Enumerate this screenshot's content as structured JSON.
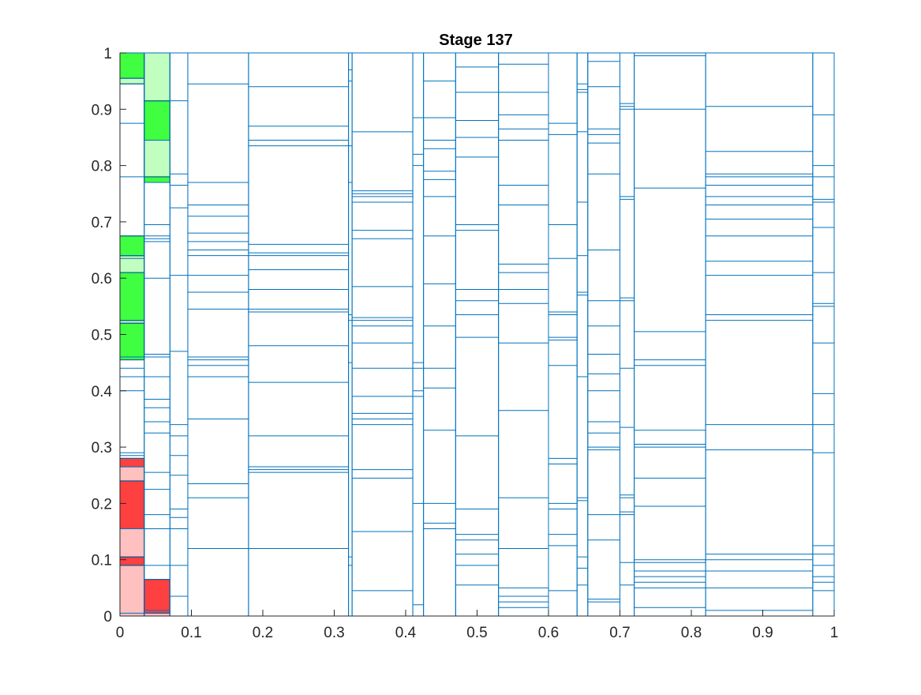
{
  "chart_data": {
    "type": "heatmap",
    "title": "Stage 137",
    "xlabel": "",
    "ylabel": "",
    "xlim": [
      0,
      1
    ],
    "ylim": [
      0,
      1
    ],
    "xticks": [
      "0",
      "0.1",
      "0.2",
      "0.3",
      "0.4",
      "0.5",
      "0.6",
      "0.7",
      "0.8",
      "0.9",
      "1"
    ],
    "yticks": [
      "0",
      "0.1",
      "0.2",
      "0.3",
      "0.4",
      "0.5",
      "0.6",
      "0.7",
      "0.8",
      "0.9",
      "1"
    ],
    "grid": false,
    "colors": {
      "outline": "#0072BD",
      "green_dark": "#40FF40",
      "green_light": "#C0FFC0",
      "red_dark": "#FF4040",
      "red_light": "#FFC0C0",
      "cell_border": "#000000",
      "axis": "#262626"
    },
    "columns": [
      {
        "x0": 0.0,
        "x1": 0.034,
        "splits": [
          0.005,
          0.09,
          0.105,
          0.155,
          0.24,
          0.265,
          0.28,
          0.285,
          0.29,
          0.4,
          0.425,
          0.44,
          0.455,
          0.46,
          0.52,
          0.525,
          0.61,
          0.635,
          0.64,
          0.675,
          0.78,
          0.875,
          0.945,
          0.955
        ],
        "fills": [
          {
            "y0": 0.0,
            "y1": 0.09,
            "color": "red_light"
          },
          {
            "y0": 0.09,
            "y1": 0.105,
            "color": "red_dark"
          },
          {
            "y0": 0.105,
            "y1": 0.155,
            "color": "red_light"
          },
          {
            "y0": 0.155,
            "y1": 0.24,
            "color": "red_dark"
          },
          {
            "y0": 0.24,
            "y1": 0.265,
            "color": "red_light"
          },
          {
            "y0": 0.265,
            "y1": 0.28,
            "color": "red_dark"
          },
          {
            "y0": 0.455,
            "y1": 0.52,
            "color": "green_dark"
          },
          {
            "y0": 0.52,
            "y1": 0.525,
            "color": "green_light"
          },
          {
            "y0": 0.525,
            "y1": 0.61,
            "color": "green_dark"
          },
          {
            "y0": 0.61,
            "y1": 0.64,
            "color": "green_light"
          },
          {
            "y0": 0.64,
            "y1": 0.675,
            "color": "green_dark"
          },
          {
            "y0": 0.945,
            "y1": 0.955,
            "color": "green_light"
          },
          {
            "y0": 0.955,
            "y1": 1.0,
            "color": "green_dark"
          }
        ]
      },
      {
        "x0": 0.034,
        "x1": 0.07,
        "splits": [
          0.005,
          0.01,
          0.065,
          0.09,
          0.155,
          0.18,
          0.225,
          0.255,
          0.325,
          0.345,
          0.37,
          0.385,
          0.425,
          0.46,
          0.465,
          0.6,
          0.665,
          0.67,
          0.675,
          0.695,
          0.77,
          0.78,
          0.845,
          0.915
        ],
        "fills": [
          {
            "y0": 0.0,
            "y1": 0.005,
            "color": "red_light"
          },
          {
            "y0": 0.005,
            "y1": 0.065,
            "color": "red_dark"
          },
          {
            "y0": 0.77,
            "y1": 0.78,
            "color": "green_dark"
          },
          {
            "y0": 0.78,
            "y1": 0.845,
            "color": "green_light"
          },
          {
            "y0": 0.845,
            "y1": 0.915,
            "color": "green_dark"
          },
          {
            "y0": 0.915,
            "y1": 1.0,
            "color": "green_light"
          }
        ]
      },
      {
        "x0": 0.07,
        "x1": 0.095,
        "splits": [
          0.035,
          0.09,
          0.155,
          0.175,
          0.19,
          0.25,
          0.285,
          0.32,
          0.34,
          0.47,
          0.605,
          0.725,
          0.765,
          0.785,
          0.915
        ],
        "fills": []
      },
      {
        "x0": 0.095,
        "x1": 0.18,
        "splits": [
          0.12,
          0.21,
          0.235,
          0.35,
          0.425,
          0.445,
          0.455,
          0.46,
          0.545,
          0.575,
          0.605,
          0.64,
          0.65,
          0.665,
          0.68,
          0.71,
          0.73,
          0.77,
          0.945
        ],
        "fills": []
      },
      {
        "x0": 0.18,
        "x1": 0.32,
        "splits": [
          0.12,
          0.255,
          0.26,
          0.265,
          0.32,
          0.415,
          0.48,
          0.54,
          0.545,
          0.58,
          0.615,
          0.64,
          0.645,
          0.66,
          0.835,
          0.845,
          0.87,
          0.94
        ],
        "fills": []
      },
      {
        "x0": 0.32,
        "x1": 0.325,
        "splits": [
          0.09,
          0.105,
          0.45,
          0.525,
          0.535,
          0.77,
          0.835,
          0.95,
          0.97
        ],
        "fills": []
      },
      {
        "x0": 0.325,
        "x1": 0.41,
        "splits": [
          0.045,
          0.15,
          0.245,
          0.26,
          0.34,
          0.35,
          0.36,
          0.39,
          0.44,
          0.485,
          0.515,
          0.525,
          0.53,
          0.585,
          0.67,
          0.685,
          0.735,
          0.745,
          0.75,
          0.755,
          0.86
        ],
        "fills": []
      },
      {
        "x0": 0.41,
        "x1": 0.425,
        "splits": [
          0.02,
          0.2,
          0.39,
          0.4,
          0.44,
          0.45,
          0.8,
          0.82,
          0.885
        ],
        "fills": []
      },
      {
        "x0": 0.425,
        "x1": 0.47,
        "splits": [
          0.155,
          0.165,
          0.2,
          0.33,
          0.405,
          0.44,
          0.515,
          0.59,
          0.675,
          0.745,
          0.775,
          0.79,
          0.83,
          0.845,
          0.885,
          0.95
        ],
        "fills": []
      },
      {
        "x0": 0.47,
        "x1": 0.53,
        "splits": [
          0.055,
          0.09,
          0.11,
          0.135,
          0.145,
          0.19,
          0.32,
          0.495,
          0.535,
          0.56,
          0.58,
          0.685,
          0.695,
          0.815,
          0.85,
          0.88,
          0.93,
          0.975
        ],
        "fills": []
      },
      {
        "x0": 0.53,
        "x1": 0.6,
        "splits": [
          0.015,
          0.025,
          0.035,
          0.05,
          0.12,
          0.21,
          0.365,
          0.485,
          0.555,
          0.58,
          0.61,
          0.625,
          0.73,
          0.765,
          0.845,
          0.865,
          0.89,
          0.93,
          0.98
        ],
        "fills": []
      },
      {
        "x0": 0.6,
        "x1": 0.64,
        "splits": [
          0.045,
          0.125,
          0.145,
          0.19,
          0.2,
          0.27,
          0.28,
          0.445,
          0.49,
          0.495,
          0.535,
          0.54,
          0.635,
          0.695,
          0.855,
          0.875
        ],
        "fills": []
      },
      {
        "x0": 0.64,
        "x1": 0.655,
        "splits": [
          0.055,
          0.085,
          0.105,
          0.205,
          0.21,
          0.425,
          0.57,
          0.575,
          0.64,
          0.735,
          0.86,
          0.93,
          0.935,
          0.945
        ],
        "fills": []
      },
      {
        "x0": 0.655,
        "x1": 0.7,
        "splits": [
          0.025,
          0.03,
          0.135,
          0.18,
          0.295,
          0.3,
          0.325,
          0.345,
          0.4,
          0.43,
          0.465,
          0.515,
          0.56,
          0.65,
          0.785,
          0.84,
          0.855,
          0.865,
          0.94,
          0.985
        ],
        "fills": []
      },
      {
        "x0": 0.7,
        "x1": 0.72,
        "splits": [
          0.055,
          0.095,
          0.18,
          0.185,
          0.21,
          0.215,
          0.335,
          0.44,
          0.56,
          0.565,
          0.74,
          0.745,
          0.9,
          0.905,
          0.91
        ],
        "fills": []
      },
      {
        "x0": 0.72,
        "x1": 0.82,
        "splits": [
          0.015,
          0.05,
          0.06,
          0.07,
          0.08,
          0.095,
          0.1,
          0.195,
          0.245,
          0.3,
          0.305,
          0.33,
          0.445,
          0.455,
          0.505,
          0.76,
          0.9,
          0.995
        ],
        "fills": []
      },
      {
        "x0": 0.82,
        "x1": 0.97,
        "splits": [
          0.01,
          0.05,
          0.08,
          0.1,
          0.11,
          0.295,
          0.34,
          0.525,
          0.535,
          0.605,
          0.63,
          0.675,
          0.705,
          0.73,
          0.745,
          0.765,
          0.78,
          0.785,
          0.825,
          0.905
        ],
        "fills": []
      },
      {
        "x0": 0.97,
        "x1": 1.0,
        "splits": [
          0.045,
          0.06,
          0.07,
          0.09,
          0.11,
          0.125,
          0.29,
          0.34,
          0.395,
          0.485,
          0.55,
          0.555,
          0.61,
          0.69,
          0.735,
          0.74,
          0.78,
          0.8,
          0.89
        ],
        "fills": []
      }
    ]
  }
}
